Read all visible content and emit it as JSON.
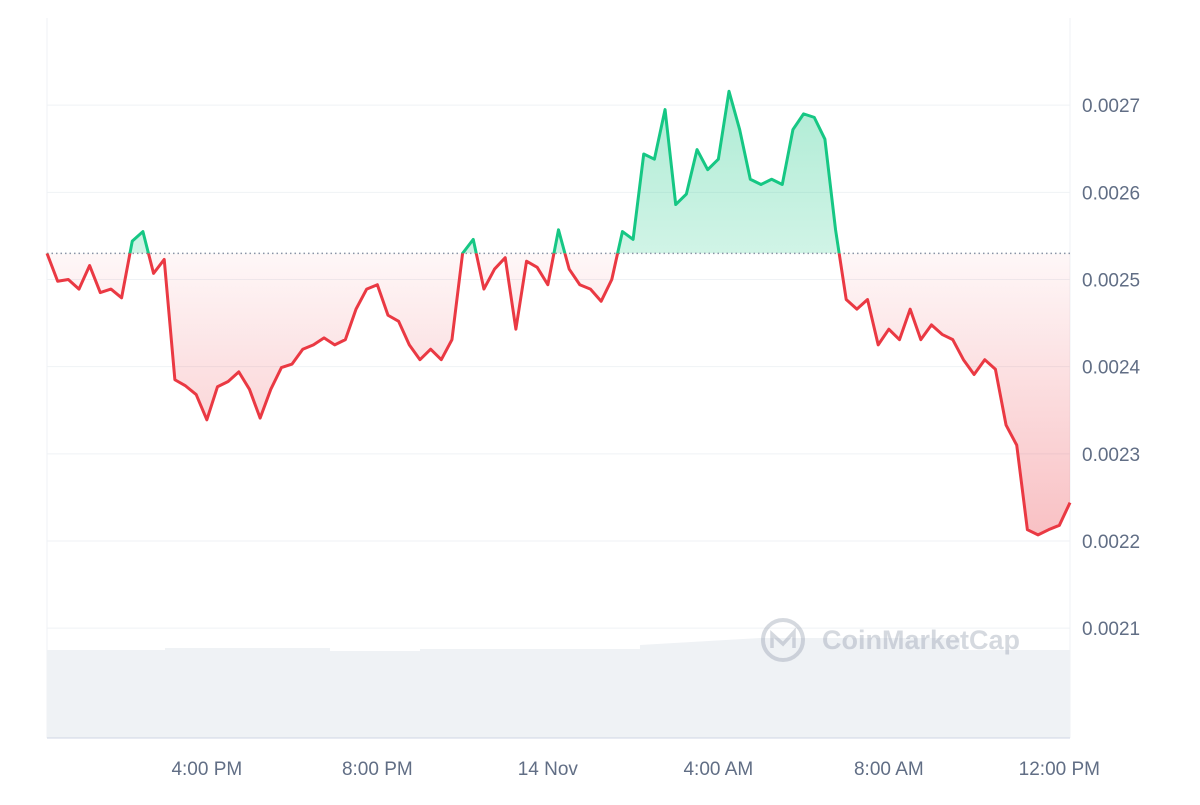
{
  "chart_data": {
    "type": "baseline-line",
    "values": [
      0.00253,
      0.002498,
      0.0025,
      0.002489,
      0.002516,
      0.002485,
      0.002489,
      0.002479,
      0.002544,
      0.002555,
      0.002507,
      0.002523,
      0.002385,
      0.002378,
      0.002368,
      0.002339,
      0.002377,
      0.002383,
      0.002394,
      0.002374,
      0.002341,
      0.002374,
      0.002399,
      0.002403,
      0.00242,
      0.002425,
      0.002433,
      0.002425,
      0.002431,
      0.002466,
      0.002489,
      0.002494,
      0.002459,
      0.002452,
      0.002425,
      0.002408,
      0.00242,
      0.002408,
      0.002431,
      0.00253,
      0.002546,
      0.002489,
      0.002512,
      0.002525,
      0.002443,
      0.002521,
      0.002514,
      0.002494,
      0.002557,
      0.002512,
      0.002494,
      0.002489,
      0.002475,
      0.0025,
      0.002555,
      0.002546,
      0.002644,
      0.002638,
      0.002695,
      0.002586,
      0.002598,
      0.002649,
      0.002626,
      0.002638,
      0.002716,
      0.002672,
      0.002615,
      0.002609,
      0.002615,
      0.002609,
      0.002672,
      0.00269,
      0.002686,
      0.002661,
      0.002557,
      0.002477,
      0.002466,
      0.002477,
      0.002425,
      0.002443,
      0.002431,
      0.002466,
      0.002431,
      0.002448,
      0.002437,
      0.002431,
      0.002408,
      0.002391,
      0.002408,
      0.002397,
      0.002333,
      0.00231,
      0.002213,
      0.002207,
      0.002213,
      0.002218,
      0.002244
    ],
    "baseline": 0.00253,
    "up_color": "#16c784",
    "down_color": "#ea3943",
    "xlim": [
      0,
      96
    ],
    "xticks": [
      {
        "value": 15,
        "label": "4:00 PM"
      },
      {
        "value": 31,
        "label": "8:00 PM"
      },
      {
        "value": 47,
        "label": "14 Nov"
      },
      {
        "value": 63,
        "label": "4:00 AM"
      },
      {
        "value": 79,
        "label": "8:00 AM"
      },
      {
        "value": 95,
        "label": "12:00 PM"
      }
    ],
    "ylim": [
      0.001974,
      0.0028
    ],
    "yticks": [
      0.0021,
      0.0022,
      0.0023,
      0.0024,
      0.0025,
      0.0026,
      0.0027
    ],
    "grid": true,
    "watermark": "CoinMarketCap"
  }
}
